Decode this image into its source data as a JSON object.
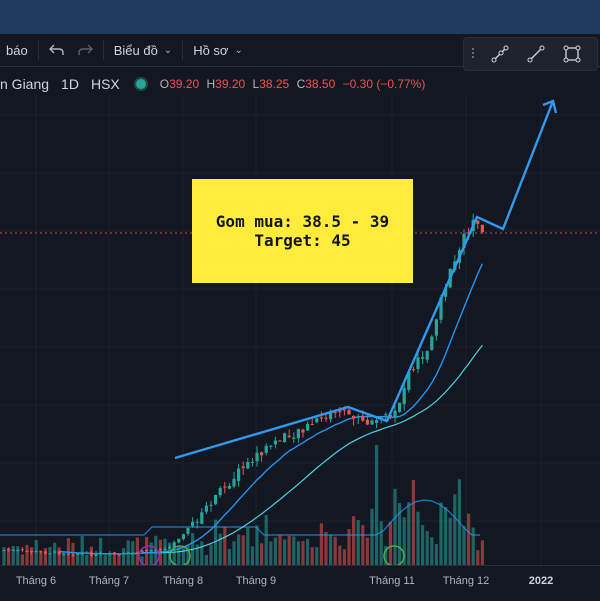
{
  "toolbar": {
    "alert_label": "báo",
    "chart_menu_label": "Biểu đồ",
    "profile_menu_label": "Hồ sơ"
  },
  "legend": {
    "symbol_name": "n Giang",
    "interval": "1D",
    "exchange": "HSX",
    "open_key": "O",
    "open": "39.20",
    "high_key": "H",
    "high": "39.20",
    "low_key": "L",
    "low": "38.25",
    "close_key": "C",
    "close": "38.50",
    "change": "−0.30 (−0.77%)"
  },
  "note": {
    "line1": "Gom mua: 38.5 - 39",
    "line2": "Target: 45"
  },
  "chart_data": {
    "type": "candlestick",
    "x_axis_labels": [
      "Tháng 6",
      "Tháng 7",
      "Tháng 8",
      "Tháng 9",
      "Tháng 11",
      "Tháng 12",
      "2022"
    ],
    "last_price": 38.5,
    "colors": {
      "up": "#26a69a",
      "down": "#ef5350",
      "ma_fast": "#2196f3",
      "ma_slow": "#4dd0e1",
      "volume_ma": "#2196f3",
      "projection": "#2f9bf0",
      "annotation": "#ffeb3b"
    }
  },
  "colors": {
    "background": "#131722",
    "topbar": "#1e3a5c",
    "grid": "#1c2030"
  }
}
